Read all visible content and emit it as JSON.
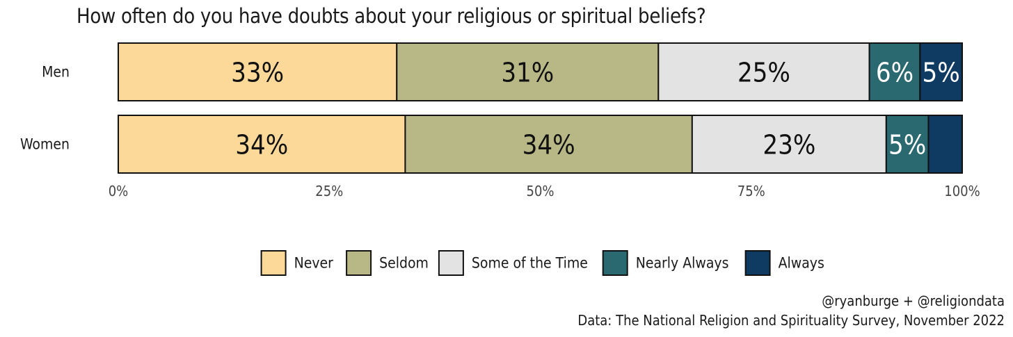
{
  "chart_data": {
    "type": "bar",
    "orientation": "horizontal",
    "stacked": true,
    "title": "How often do you have doubts about your religious or spiritual beliefs?",
    "categories": [
      "Men",
      "Women"
    ],
    "series": [
      {
        "name": "Never",
        "color": "#FCD998",
        "values": [
          33,
          34
        ],
        "labels": [
          "33%",
          "34%"
        ]
      },
      {
        "name": "Seldom",
        "color": "#B8B887",
        "values": [
          31,
          34
        ],
        "labels": [
          "31%",
          "34%"
        ]
      },
      {
        "name": "Some of the Time",
        "color": "#E3E3E3",
        "values": [
          25,
          23
        ],
        "labels": [
          "25%",
          "23%"
        ]
      },
      {
        "name": "Nearly Always",
        "color": "#2A6970",
        "values": [
          6,
          5
        ],
        "labels": [
          "6%",
          "5%"
        ]
      },
      {
        "name": "Always",
        "color": "#0F3B63",
        "values": [
          5,
          4
        ],
        "labels": [
          "5%",
          ""
        ]
      }
    ],
    "xlim": [
      0,
      100
    ],
    "xticks": [
      0,
      25,
      50,
      75,
      100
    ],
    "xtick_labels": [
      "0%",
      "25%",
      "50%",
      "75%",
      "100%"
    ],
    "grid": false,
    "legend_position": "bottom"
  },
  "captions": {
    "line1": "@ryanburge + @religiondata",
    "line2": "Data: The National Religion and Spirituality Survey, November 2022"
  }
}
